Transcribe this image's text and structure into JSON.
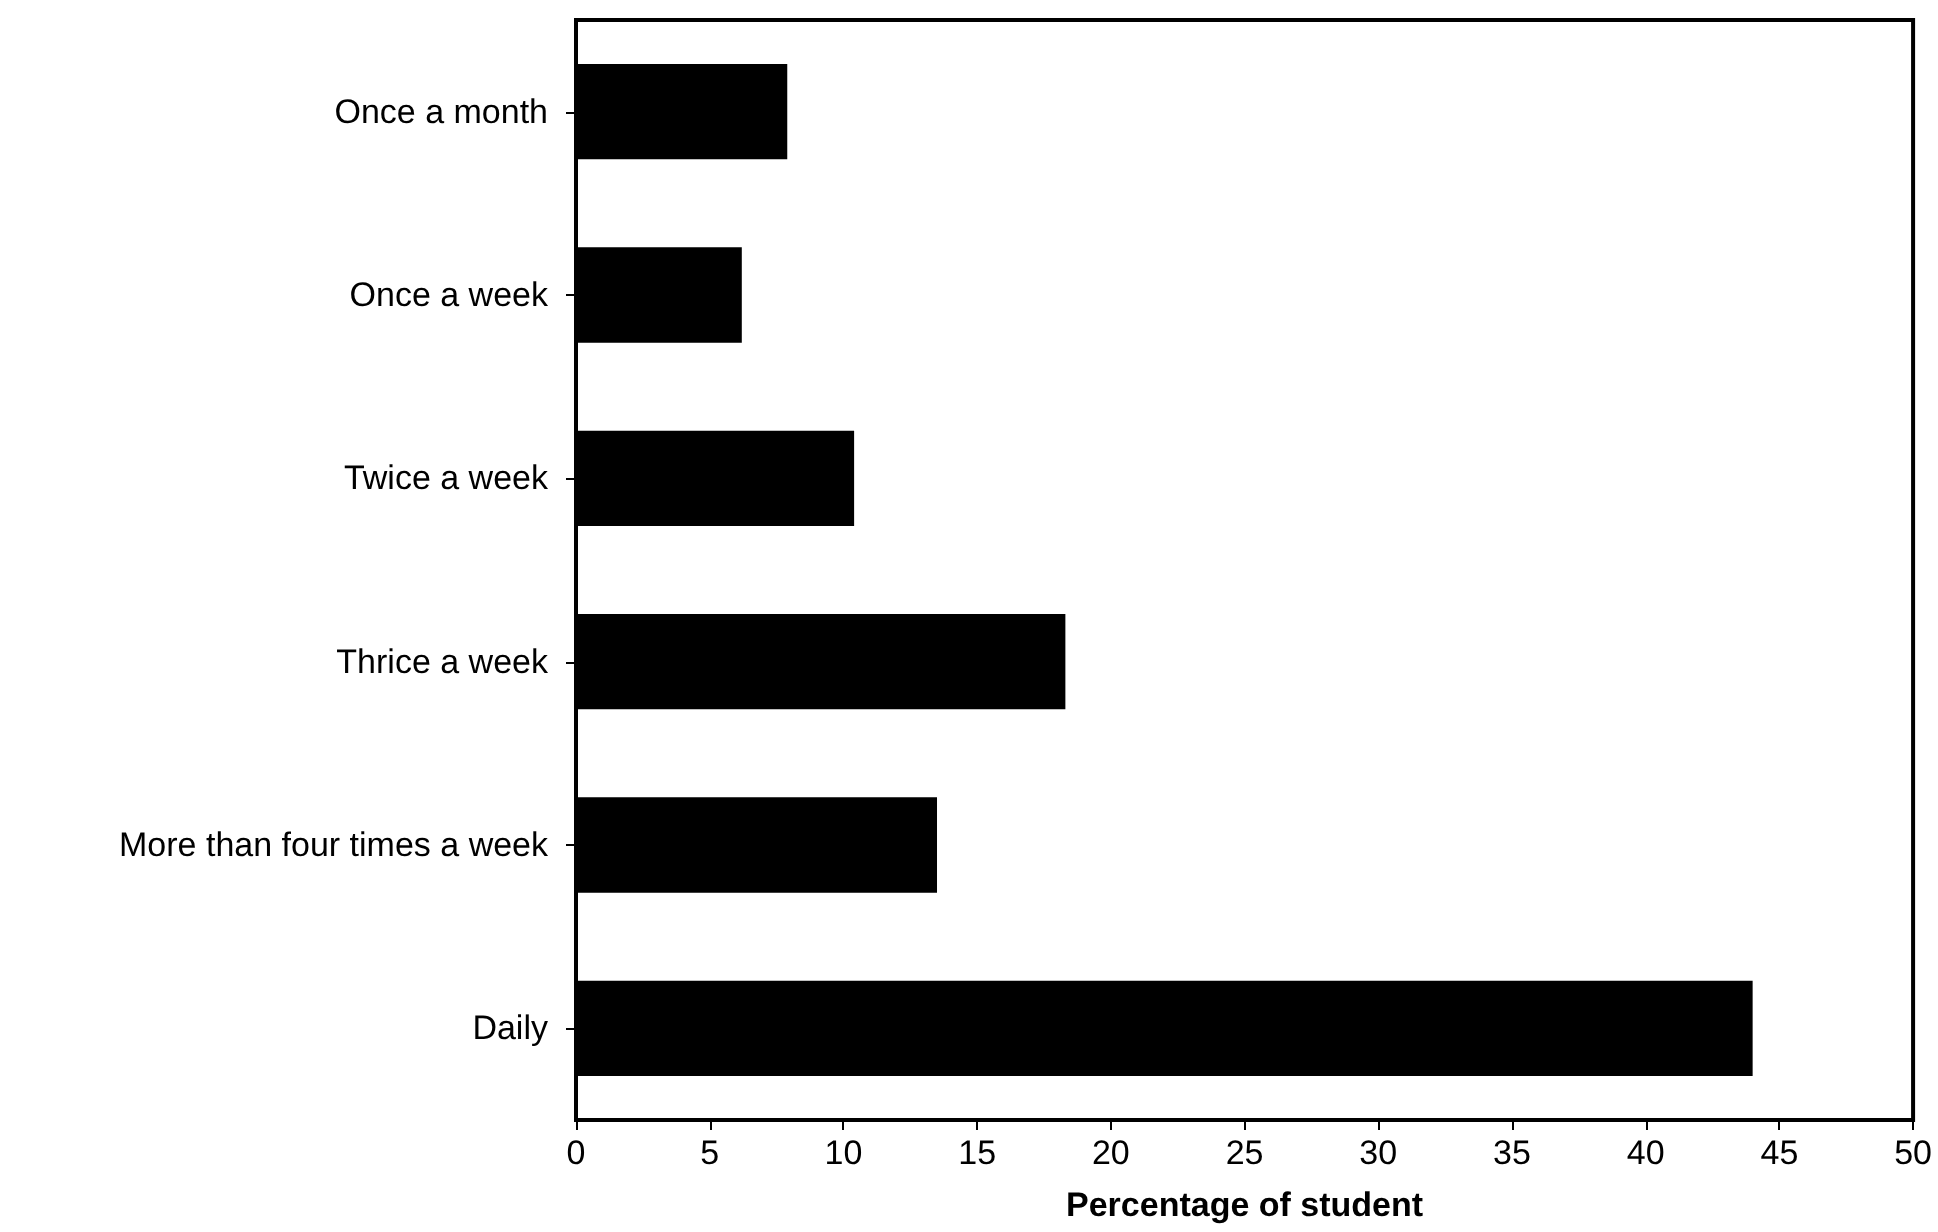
{
  "chart_data": {
    "type": "bar",
    "orientation": "horizontal",
    "xlabel": "Percentage of student",
    "categories": [
      "Once a month",
      "Once a week",
      "Twice a week",
      "Thrice a week",
      "More than four times a week",
      "Daily"
    ],
    "values": [
      7.9,
      6.2,
      10.4,
      18.3,
      13.5,
      44.0
    ],
    "color": "#000000",
    "xlim": [
      0,
      50
    ],
    "xticks": [
      0,
      5,
      10,
      15,
      20,
      25,
      30,
      35,
      40,
      45,
      50
    ],
    "grid": false
  }
}
